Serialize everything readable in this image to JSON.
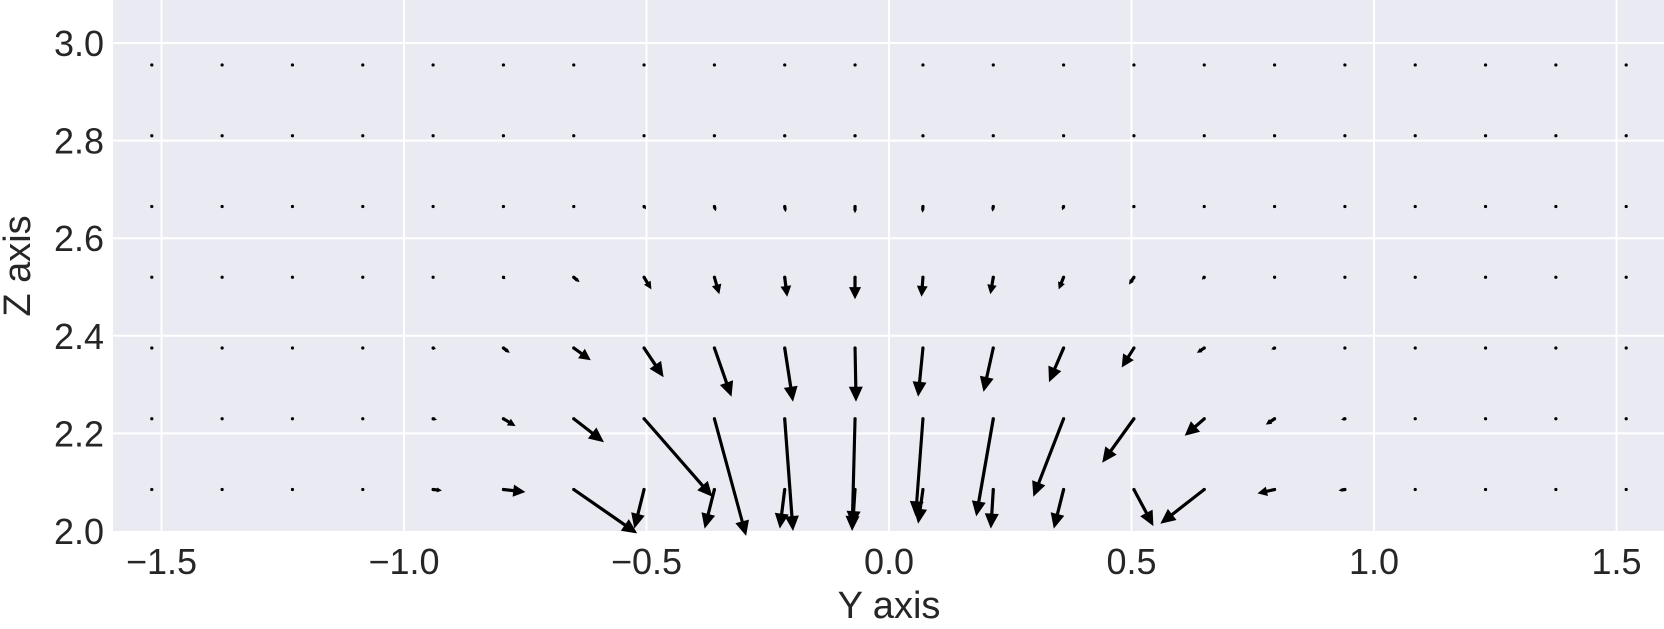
{
  "chart_data": {
    "type": "quiver",
    "xlabel": "Y axis",
    "ylabel": "Z axis",
    "xlim": [
      -1.62,
      1.62
    ],
    "ylim": [
      2.0,
      3.1
    ],
    "xticks": [
      -1.5,
      -1.0,
      -0.5,
      0.0,
      0.5,
      1.0,
      1.5
    ],
    "xtick_labels": [
      "−1.5",
      "−1.0",
      "−0.5",
      "0.0",
      "0.5",
      "1.0",
      "1.5"
    ],
    "yticks": [
      2.0,
      2.2,
      2.4,
      2.6,
      2.8,
      3.0
    ],
    "ytick_labels": [
      "2.0",
      "2.2",
      "2.4",
      "2.6",
      "2.8",
      "3.0"
    ],
    "grid": true,
    "colors": {
      "background": "#eaeaf2",
      "grid": "#ffffff",
      "arrow": "#000000",
      "text": "#262626"
    },
    "grid_x": [
      -1.52,
      -1.375,
      -1.23,
      -1.085,
      -0.94,
      -0.795,
      -0.65,
      -0.505,
      -0.36,
      -0.215,
      -0.07,
      0.07,
      0.215,
      0.36,
      0.505,
      0.65,
      0.795,
      0.94,
      1.085,
      1.23,
      1.375,
      1.52
    ],
    "grid_z": [
      2.085,
      2.23,
      2.375,
      2.52,
      2.665,
      2.81,
      2.955
    ],
    "vectors": [
      {
        "x": -0.94,
        "z": 2.085,
        "u": 0.018,
        "w": -0.002
      },
      {
        "x": -0.795,
        "z": 2.085,
        "u": 0.045,
        "w": -0.005
      },
      {
        "x": -0.65,
        "z": 2.085,
        "u": 0.13,
        "w": -0.09
      },
      {
        "x": -0.505,
        "z": 2.085,
        "u": -0.02,
        "w": -0.08
      },
      {
        "x": -0.36,
        "z": 2.085,
        "u": -0.02,
        "w": -0.08
      },
      {
        "x": -0.215,
        "z": 2.085,
        "u": -0.01,
        "w": -0.08
      },
      {
        "x": -0.07,
        "z": 2.085,
        "u": -0.005,
        "w": -0.075
      },
      {
        "x": 0.07,
        "z": 2.085,
        "u": -0.01,
        "w": -0.07
      },
      {
        "x": 0.215,
        "z": 2.085,
        "u": -0.005,
        "w": -0.08
      },
      {
        "x": 0.36,
        "z": 2.085,
        "u": -0.02,
        "w": -0.08
      },
      {
        "x": 0.505,
        "z": 2.085,
        "u": 0.04,
        "w": -0.075
      },
      {
        "x": 0.65,
        "z": 2.085,
        "u": -0.09,
        "w": -0.07
      },
      {
        "x": 0.795,
        "z": 2.085,
        "u": -0.035,
        "w": -0.008
      },
      {
        "x": 0.94,
        "z": 2.085,
        "u": -0.013,
        "w": -0.002
      },
      {
        "x": -0.94,
        "z": 2.23,
        "u": 0.008,
        "w": -0.002
      },
      {
        "x": -0.795,
        "z": 2.23,
        "u": 0.025,
        "w": -0.015
      },
      {
        "x": -0.65,
        "z": 2.23,
        "u": 0.062,
        "w": -0.048
      },
      {
        "x": -0.505,
        "z": 2.23,
        "u": 0.14,
        "w": -0.16
      },
      {
        "x": -0.36,
        "z": 2.23,
        "u": 0.065,
        "w": -0.24
      },
      {
        "x": -0.215,
        "z": 2.23,
        "u": 0.017,
        "w": -0.23
      },
      {
        "x": -0.07,
        "z": 2.23,
        "u": -0.006,
        "w": -0.23
      },
      {
        "x": 0.07,
        "z": 2.23,
        "u": -0.015,
        "w": -0.2
      },
      {
        "x": 0.215,
        "z": 2.23,
        "u": -0.035,
        "w": -0.2
      },
      {
        "x": 0.36,
        "z": 2.23,
        "u": -0.062,
        "w": -0.16
      },
      {
        "x": 0.505,
        "z": 2.23,
        "u": -0.065,
        "w": -0.09
      },
      {
        "x": 0.65,
        "z": 2.23,
        "u": -0.04,
        "w": -0.035
      },
      {
        "x": 0.795,
        "z": 2.23,
        "u": -0.018,
        "w": -0.012
      },
      {
        "x": 0.94,
        "z": 2.23,
        "u": -0.008,
        "w": -0.002
      },
      {
        "x": -0.94,
        "z": 2.375,
        "u": 0.006,
        "w": -0.002
      },
      {
        "x": -0.795,
        "z": 2.375,
        "u": 0.013,
        "w": -0.01
      },
      {
        "x": -0.65,
        "z": 2.375,
        "u": 0.035,
        "w": -0.025
      },
      {
        "x": -0.505,
        "z": 2.375,
        "u": 0.04,
        "w": -0.06
      },
      {
        "x": -0.36,
        "z": 2.375,
        "u": 0.035,
        "w": -0.1
      },
      {
        "x": -0.215,
        "z": 2.375,
        "u": 0.017,
        "w": -0.11
      },
      {
        "x": -0.07,
        "z": 2.375,
        "u": 0.002,
        "w": -0.11
      },
      {
        "x": 0.07,
        "z": 2.375,
        "u": -0.01,
        "w": -0.1
      },
      {
        "x": 0.215,
        "z": 2.375,
        "u": -0.02,
        "w": -0.09
      },
      {
        "x": 0.36,
        "z": 2.375,
        "u": -0.03,
        "w": -0.07
      },
      {
        "x": 0.505,
        "z": 2.375,
        "u": -0.025,
        "w": -0.04
      },
      {
        "x": 0.65,
        "z": 2.375,
        "u": -0.015,
        "w": -0.01
      },
      {
        "x": 0.795,
        "z": 2.375,
        "u": -0.007,
        "w": -0.003
      },
      {
        "x": 0.94,
        "z": 2.375,
        "u": -0.003,
        "w": -0.001
      },
      {
        "x": -0.795,
        "z": 2.52,
        "u": 0.004,
        "w": -0.004
      },
      {
        "x": -0.65,
        "z": 2.52,
        "u": 0.012,
        "w": -0.01
      },
      {
        "x": -0.505,
        "z": 2.52,
        "u": 0.015,
        "w": -0.025
      },
      {
        "x": -0.36,
        "z": 2.52,
        "u": 0.01,
        "w": -0.035
      },
      {
        "x": -0.215,
        "z": 2.52,
        "u": 0.005,
        "w": -0.04
      },
      {
        "x": -0.07,
        "z": 2.52,
        "u": 0.0,
        "w": -0.045
      },
      {
        "x": 0.07,
        "z": 2.52,
        "u": -0.003,
        "w": -0.04
      },
      {
        "x": 0.215,
        "z": 2.52,
        "u": -0.006,
        "w": -0.035
      },
      {
        "x": 0.36,
        "z": 2.52,
        "u": -0.01,
        "w": -0.025
      },
      {
        "x": 0.505,
        "z": 2.52,
        "u": -0.01,
        "w": -0.015
      },
      {
        "x": 0.65,
        "z": 2.52,
        "u": -0.005,
        "w": -0.005
      },
      {
        "x": 0.795,
        "z": 2.52,
        "u": -0.002,
        "w": -0.001
      },
      {
        "x": -0.65,
        "z": 2.665,
        "u": 0.003,
        "w": -0.002
      },
      {
        "x": -0.505,
        "z": 2.665,
        "u": 0.004,
        "w": -0.006
      },
      {
        "x": -0.36,
        "z": 2.665,
        "u": 0.003,
        "w": -0.01
      },
      {
        "x": -0.215,
        "z": 2.665,
        "u": 0.002,
        "w": -0.012
      },
      {
        "x": -0.07,
        "z": 2.665,
        "u": 0.0,
        "w": -0.014
      },
      {
        "x": 0.07,
        "z": 2.665,
        "u": -0.001,
        "w": -0.013
      },
      {
        "x": 0.215,
        "z": 2.665,
        "u": -0.002,
        "w": -0.011
      },
      {
        "x": 0.36,
        "z": 2.665,
        "u": -0.003,
        "w": -0.008
      },
      {
        "x": 0.505,
        "z": 2.665,
        "u": -0.003,
        "w": -0.004
      },
      {
        "x": 0.65,
        "z": 2.665,
        "u": -0.002,
        "w": -0.001
      },
      {
        "x": -0.36,
        "z": 2.81,
        "u": 0.001,
        "w": -0.003
      },
      {
        "x": -0.215,
        "z": 2.81,
        "u": 0.0,
        "w": -0.004
      },
      {
        "x": -0.07,
        "z": 2.81,
        "u": 0.0,
        "w": -0.004
      },
      {
        "x": 0.07,
        "z": 2.81,
        "u": 0.0,
        "w": -0.004
      },
      {
        "x": 0.215,
        "z": 2.81,
        "u": 0.0,
        "w": -0.003
      },
      {
        "x": 0.36,
        "z": 2.81,
        "u": -0.001,
        "w": -0.002
      }
    ]
  }
}
